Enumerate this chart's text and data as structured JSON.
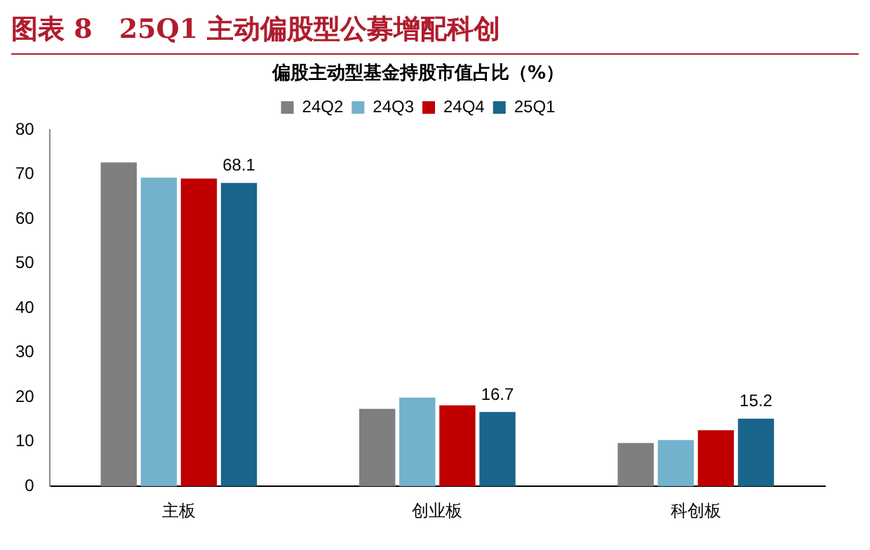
{
  "chart_data": {
    "type": "bar",
    "title": "图表 8　25Q1 主动偏股型公募增配科创",
    "subtitle": "偏股主动型基金持股市值占比（%）",
    "categories": [
      "主板",
      "创业板",
      "科创板"
    ],
    "series": [
      {
        "name": "24Q2",
        "color": "#7f7f7f",
        "values": [
          72.7,
          17.4,
          9.7
        ]
      },
      {
        "name": "24Q3",
        "color": "#72b2cc",
        "values": [
          69.3,
          19.9,
          10.4
        ]
      },
      {
        "name": "24Q4",
        "color": "#c00000",
        "values": [
          69.1,
          18.2,
          12.6
        ]
      },
      {
        "name": "25Q1",
        "color": "#1a658c",
        "values": [
          68.1,
          16.7,
          15.2
        ],
        "value_labels": [
          "68.1",
          "16.7",
          "15.2"
        ]
      }
    ],
    "ylim": [
      0,
      80
    ],
    "yticks": [
      0,
      10,
      20,
      30,
      40,
      50,
      60,
      70,
      80
    ],
    "grid": false,
    "legend": "top"
  }
}
